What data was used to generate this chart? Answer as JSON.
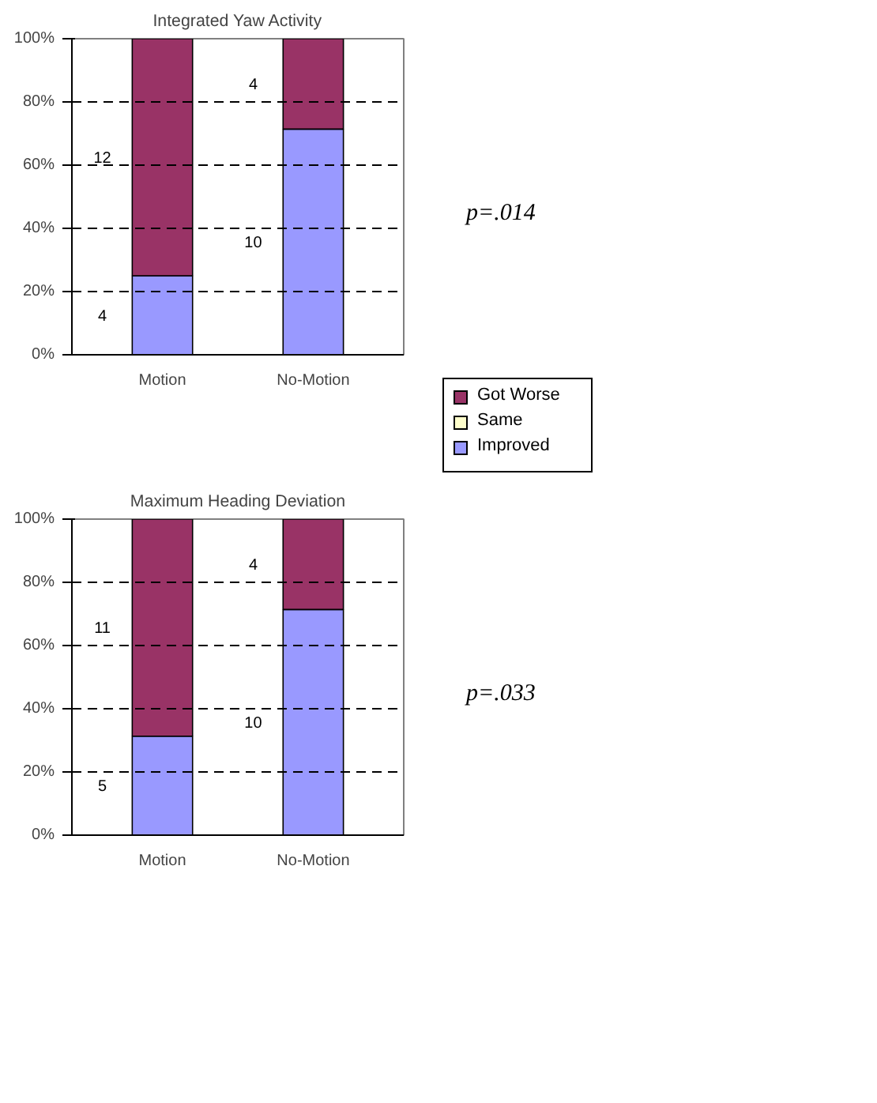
{
  "chart_data": [
    {
      "type": "bar",
      "title": "Integrated Yaw Activity",
      "categories": [
        "Motion",
        "No-Motion"
      ],
      "stacked": true,
      "ylim": [
        0,
        100
      ],
      "yticks": [
        {
          "value": 0,
          "label": "0%"
        },
        {
          "value": 20,
          "label": "20%"
        },
        {
          "value": 40,
          "label": "40%"
        },
        {
          "value": 60,
          "label": "60%"
        },
        {
          "value": 80,
          "label": "80%"
        },
        {
          "value": 100,
          "label": "100%"
        }
      ],
      "grid": "y",
      "legend": "right",
      "annotations": [
        "4",
        "10",
        "12",
        "4",
        "p=.014"
      ],
      "series": [
        {
          "name": "Improved",
          "color": "#9999ff",
          "values": [
            25,
            71.4
          ]
        },
        {
          "name": "Same",
          "color": "#ffffcc",
          "values": [
            0,
            0
          ]
        },
        {
          "name": "Got Worse",
          "color": "#993366",
          "values": [
            75,
            28.6
          ]
        }
      ]
    },
    {
      "type": "bar",
      "title": "Maximum Heading Deviation",
      "categories": [
        "Motion",
        "No-Motion"
      ],
      "stacked": true,
      "ylim": [
        0,
        100
      ],
      "yticks": [
        {
          "value": 0,
          "label": "0%"
        },
        {
          "value": 20,
          "label": "20%"
        },
        {
          "value": 40,
          "label": "40%"
        },
        {
          "value": 60,
          "label": "60%"
        },
        {
          "value": 80,
          "label": "80%"
        },
        {
          "value": 100,
          "label": "100%"
        }
      ],
      "grid": "y",
      "annotations": [
        "5",
        "10",
        "11",
        "4",
        "p=.033"
      ],
      "series": [
        {
          "color": "#9999ff",
          "values": [
            31.3,
            71.4
          ]
        },
        {
          "color": "#ffffcc",
          "values": [
            0,
            0
          ]
        },
        {
          "color": "#993366",
          "values": [
            68.8,
            28.6
          ]
        }
      ]
    }
  ]
}
